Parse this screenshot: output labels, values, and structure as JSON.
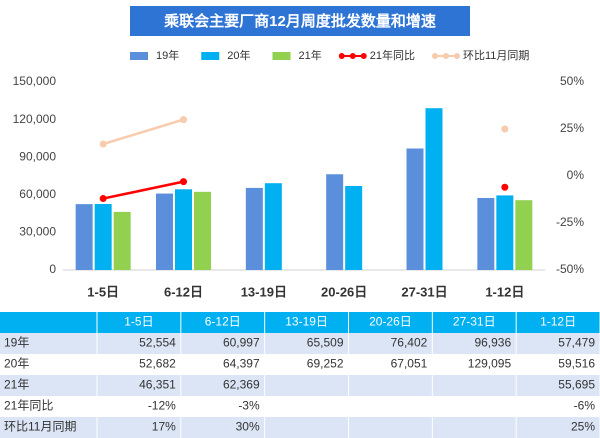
{
  "chart_data": {
    "type": "bar",
    "title": "乘联会主要厂商12月周度批发数量和增速",
    "categories": [
      "1-5日",
      "6-12日",
      "13-19日",
      "20-26日",
      "27-31日",
      "1-12日"
    ],
    "series": [
      {
        "name": "19年",
        "type": "bar",
        "color": "#5b8fdb",
        "values": [
          52554,
          60997,
          65509,
          76402,
          96936,
          57479
        ],
        "value_labels": [
          "52,554",
          "60,997",
          "65,509",
          "76,402",
          "96,936",
          "57,479"
        ]
      },
      {
        "name": "20年",
        "type": "bar",
        "color": "#00b0f0",
        "values": [
          52682,
          64397,
          69252,
          67051,
          129095,
          59516
        ],
        "value_labels": [
          "52,682",
          "64,397",
          "69,252",
          "67,051",
          "129,095",
          "59,516"
        ]
      },
      {
        "name": "21年",
        "type": "bar",
        "color": "#92d050",
        "values": [
          46351,
          62369,
          null,
          null,
          null,
          55695
        ],
        "value_labels": [
          "46,351",
          "62,369",
          null,
          null,
          null,
          "55,695"
        ]
      },
      {
        "name": "21年同比",
        "type": "line",
        "axis": "y2",
        "color": "#ff0000",
        "values": [
          -12,
          -3,
          null,
          null,
          null,
          -6
        ],
        "value_labels": [
          "-12%",
          "-3%",
          null,
          null,
          null,
          "-6%"
        ]
      },
      {
        "name": "环比11月同期",
        "type": "line",
        "axis": "y2",
        "color": "#f8cbad",
        "values": [
          17,
          30,
          null,
          null,
          null,
          25
        ],
        "value_labels": [
          "17%",
          "30%",
          null,
          null,
          null,
          "25%"
        ]
      }
    ],
    "ylim": [
      0,
      150000
    ],
    "yticks": [
      0,
      {
        "value": 30000,
        "label": "30,000"
      },
      {
        "value": 60000,
        "label": "60,000"
      },
      {
        "value": 90000,
        "label": "90,000"
      },
      {
        "value": 120000,
        "label": "120,000"
      },
      {
        "value": 150000,
        "label": "150,000"
      }
    ],
    "y2lim": [
      -50,
      50
    ],
    "y2ticks": [
      {
        "value": -50,
        "label": "-50%"
      },
      {
        "value": -25,
        "label": "-25%"
      },
      {
        "value": 0,
        "label": "0%"
      },
      {
        "value": 25,
        "label": "25%"
      },
      {
        "value": 50,
        "label": "50%"
      }
    ],
    "grid": false,
    "legend": "top"
  }
}
